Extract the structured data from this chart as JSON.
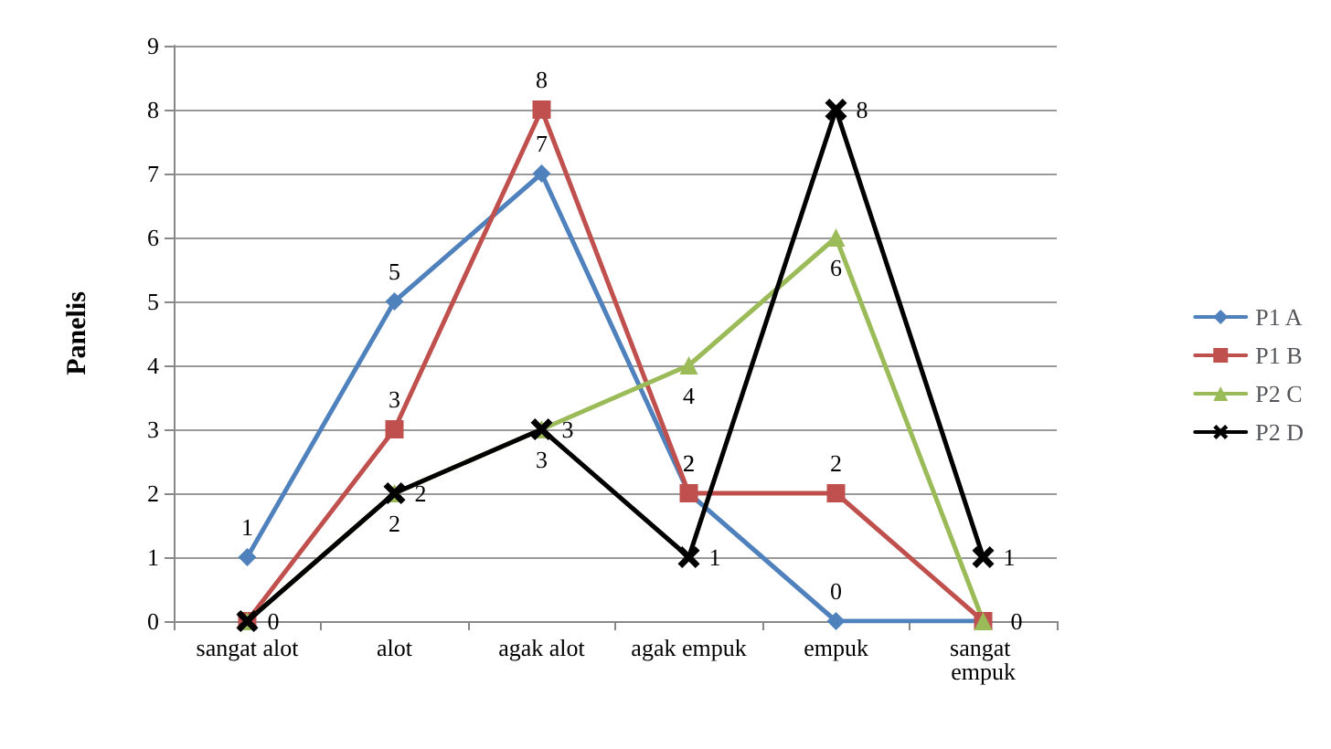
{
  "chart_data": {
    "type": "line",
    "ylabel": "Panelis",
    "categories": [
      "sangat alot",
      "alot",
      "agak alot",
      "agak empuk",
      "empuk",
      "sangat empuk"
    ],
    "series": [
      {
        "name": "P1 A",
        "color": "#4f81bd",
        "marker": "diamond",
        "values": [
          1,
          5,
          7,
          2,
          0,
          0
        ],
        "value_labels": [
          "1",
          "5",
          "7",
          "2",
          "0",
          null
        ]
      },
      {
        "name": "P1 B",
        "color": "#c0504d",
        "marker": "square",
        "values": [
          0,
          3,
          8,
          2,
          2,
          0
        ],
        "value_labels": [
          null,
          "3",
          "8",
          "2",
          "2",
          null
        ]
      },
      {
        "name": "P2 C",
        "color": "#9bbb59",
        "marker": "triangle",
        "values": [
          0,
          2,
          3,
          4,
          6,
          0
        ],
        "value_labels": [
          null,
          "2",
          "3",
          "4",
          "6",
          "0"
        ]
      },
      {
        "name": "P2 D",
        "color": "#000000",
        "marker": "cross",
        "values": [
          0,
          2,
          3,
          1,
          8,
          1
        ],
        "value_labels": [
          "0",
          "2",
          "3",
          "1",
          "8",
          "1"
        ]
      }
    ],
    "ylim": [
      0,
      9
    ],
    "yticks": [
      0,
      1,
      2,
      3,
      4,
      5,
      6,
      7,
      8,
      9
    ],
    "grid": "y",
    "legend": "right"
  }
}
